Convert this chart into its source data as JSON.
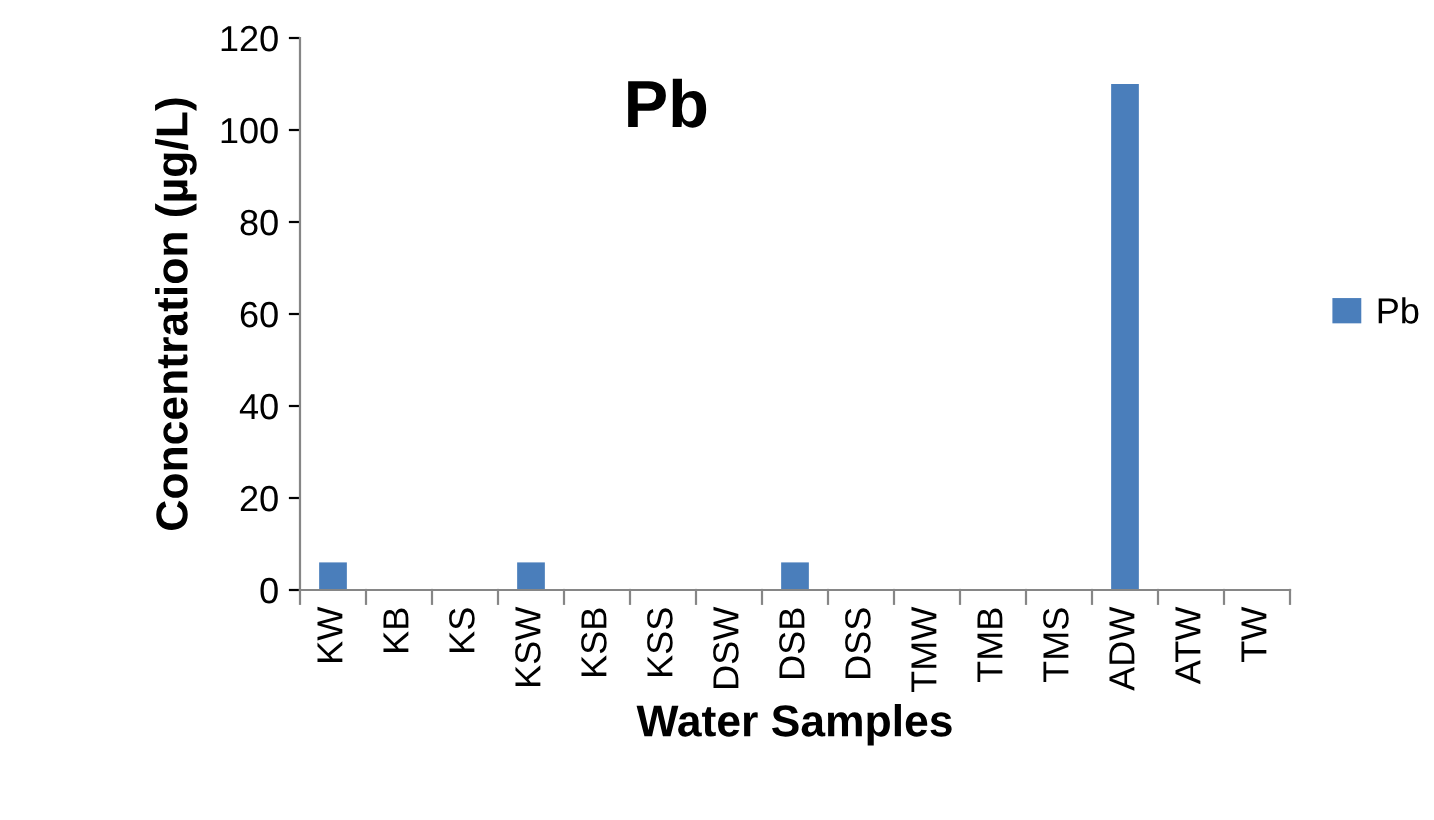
{
  "chart_data": {
    "type": "bar",
    "title": "Pb",
    "xlabel": "Water Samples",
    "ylabel": "Concentration (µg/L)",
    "categories": [
      "KW",
      "KB",
      "KS",
      "KSW",
      "KSB",
      "KSS",
      "DSW",
      "DSB",
      "DSS",
      "TMW",
      "TMB",
      "TMS",
      "ADW",
      "ATW",
      "TW"
    ],
    "series": [
      {
        "name": "Pb",
        "color": "#4a7ebb",
        "values": [
          6,
          0,
          0,
          6,
          0,
          0,
          0,
          6,
          0,
          0,
          0,
          0,
          110,
          0,
          0
        ]
      }
    ],
    "ylim": [
      0,
      120
    ],
    "yticks": [
      0,
      20,
      40,
      60,
      80,
      100,
      120
    ],
    "grid": false,
    "legend": "right"
  }
}
